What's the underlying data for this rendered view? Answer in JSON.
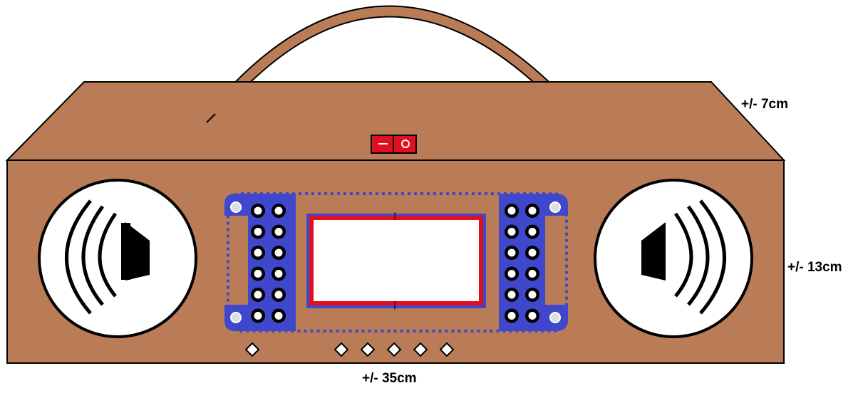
{
  "dimensions": {
    "depth": "+/- 7cm",
    "height": "+/- 13cm",
    "width": "+/- 35cm"
  },
  "components": {
    "handle": "handle",
    "power_switch": "power-switch",
    "left_speaker": "speaker-icon",
    "right_speaker": "speaker-icon",
    "circuit_board": "pcb-board",
    "display": "lcd-display",
    "buttons_count": 6
  },
  "colors": {
    "wood": "#B97C57",
    "handle": "#B97C57",
    "outline": "#000000",
    "switch": "#E0101F",
    "pcb": "#3F48CC",
    "display_frame": "#E0101F",
    "display_screen": "#FFFFFF",
    "speaker_grille": "#FFFFFF"
  }
}
